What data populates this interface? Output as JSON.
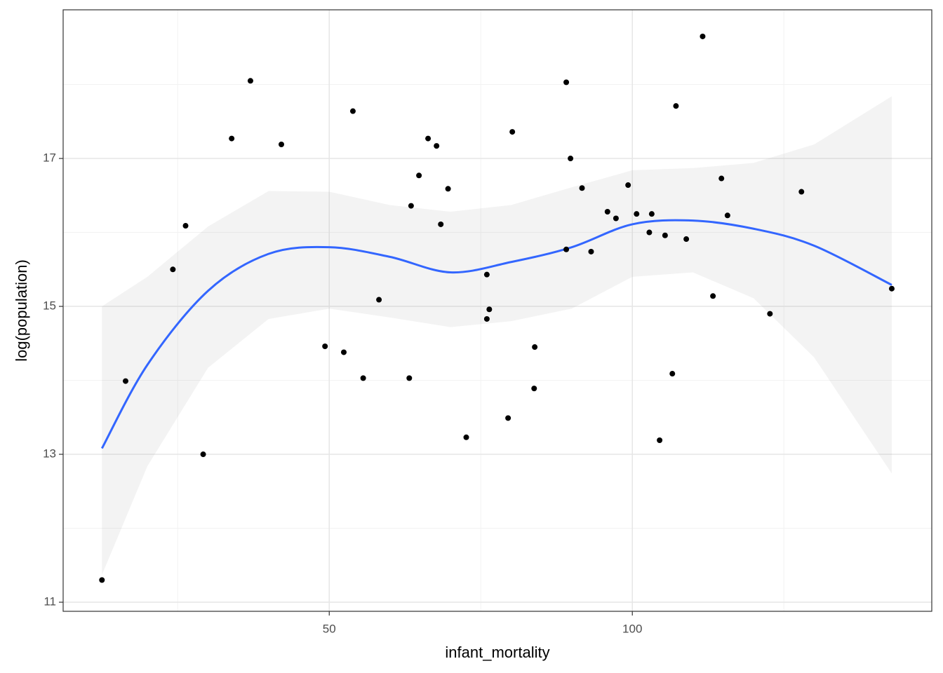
{
  "chart_data": {
    "type": "scatter",
    "x_label": "infant_mortality",
    "y_label": "log(population)",
    "xlim": [
      6.1,
      149.4
    ],
    "ylim": [
      10.877,
      19.01
    ],
    "xticks": [
      50,
      100
    ],
    "yticks": [
      11,
      13,
      15,
      17
    ],
    "minor_xticks": [
      25,
      75,
      125
    ],
    "minor_yticks": [
      12,
      14,
      16,
      18
    ],
    "grid": true,
    "point_color": "#000000",
    "x": [
      12.5,
      16.4,
      24.2,
      26.3,
      29.2,
      33.9,
      37.0,
      42.1,
      49.3,
      52.4,
      53.9,
      55.6,
      58.2,
      63.2,
      63.5,
      64.8,
      66.3,
      67.7,
      68.4,
      69.6,
      72.6,
      76.0,
      76.0,
      76.4,
      79.5,
      80.2,
      83.8,
      83.9,
      89.1,
      89.1,
      89.8,
      91.7,
      93.2,
      95.9,
      97.3,
      99.3,
      100.7,
      102.8,
      103.2,
      104.5,
      105.4,
      106.6,
      107.2,
      108.9,
      111.6,
      113.3,
      114.7,
      115.7,
      122.7,
      127.9,
      142.8
    ],
    "values": [
      11.3,
      13.99,
      15.5,
      16.09,
      13.0,
      17.27,
      18.05,
      17.19,
      14.46,
      14.38,
      17.64,
      14.03,
      15.09,
      14.03,
      16.36,
      16.77,
      17.27,
      17.17,
      16.11,
      16.59,
      13.23,
      15.43,
      14.83,
      14.96,
      13.49,
      17.36,
      13.89,
      14.45,
      18.03,
      15.77,
      17.0,
      16.6,
      15.74,
      16.28,
      16.19,
      16.64,
      16.25,
      16.0,
      16.25,
      13.19,
      15.96,
      14.09,
      17.71,
      15.91,
      18.65,
      15.14,
      16.73,
      16.23,
      14.9,
      16.55,
      15.24
    ],
    "smooth": {
      "color": "#3366ff",
      "band_color": "#999999",
      "x": [
        12.5,
        20,
        30,
        40,
        50,
        60,
        70,
        80,
        90,
        100,
        110,
        120,
        130,
        142.8
      ],
      "values": [
        13.08,
        14.21,
        15.21,
        15.71,
        15.8,
        15.67,
        15.46,
        15.6,
        15.8,
        16.11,
        16.16,
        16.05,
        15.82,
        15.29
      ],
      "ymin": [
        11.37,
        12.84,
        14.17,
        14.83,
        14.97,
        14.85,
        14.72,
        14.8,
        14.97,
        15.4,
        15.46,
        15.11,
        14.31,
        12.74
      ],
      "ymax": [
        15.0,
        15.4,
        16.08,
        16.56,
        16.55,
        16.37,
        16.28,
        16.37,
        16.61,
        16.84,
        16.87,
        16.94,
        17.19,
        17.84
      ]
    }
  }
}
